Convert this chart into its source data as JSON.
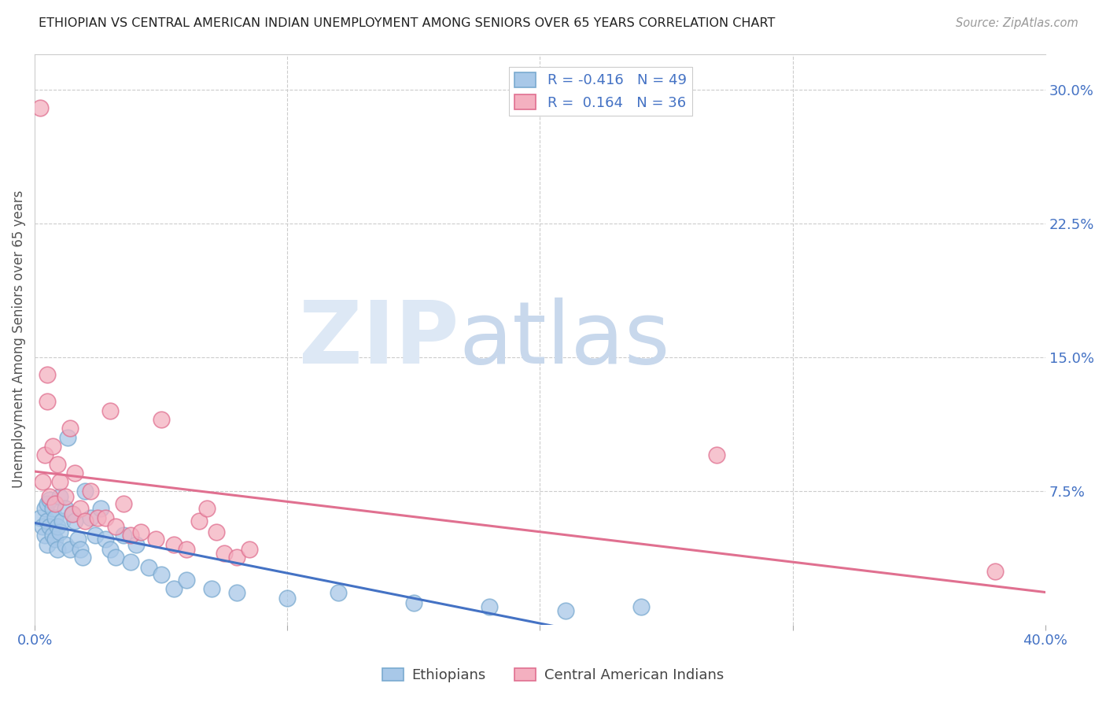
{
  "title": "ETHIOPIAN VS CENTRAL AMERICAN INDIAN UNEMPLOYMENT AMONG SENIORS OVER 65 YEARS CORRELATION CHART",
  "source": "Source: ZipAtlas.com",
  "ylabel": "Unemployment Among Seniors over 65 years",
  "xlim": [
    0.0,
    0.4
  ],
  "ylim": [
    0.0,
    0.32
  ],
  "yticks_right": [
    0.075,
    0.15,
    0.225,
    0.3
  ],
  "yticklabels_right": [
    "7.5%",
    "15.0%",
    "22.5%",
    "30.0%"
  ],
  "blue_color": "#a8c8e8",
  "pink_color": "#f4b0c0",
  "blue_edge": "#7aaad0",
  "pink_edge": "#e07090",
  "trend_blue": "#4472c4",
  "trend_pink": "#e07090",
  "R_blue": -0.416,
  "N_blue": 49,
  "R_pink": 0.164,
  "N_pink": 36,
  "legend_label_blue": "Ethiopians",
  "legend_label_pink": "Central American Indians",
  "watermark_zip": "ZIP",
  "watermark_atlas": "atlas",
  "title_color": "#222222",
  "axis_color": "#4472c4",
  "ethiopian_x": [
    0.002,
    0.003,
    0.004,
    0.004,
    0.005,
    0.005,
    0.005,
    0.006,
    0.006,
    0.007,
    0.007,
    0.008,
    0.008,
    0.009,
    0.009,
    0.01,
    0.01,
    0.011,
    0.012,
    0.012,
    0.013,
    0.014,
    0.015,
    0.016,
    0.017,
    0.018,
    0.019,
    0.02,
    0.022,
    0.024,
    0.026,
    0.028,
    0.03,
    0.032,
    0.035,
    0.038,
    0.04,
    0.045,
    0.05,
    0.055,
    0.06,
    0.07,
    0.08,
    0.1,
    0.12,
    0.15,
    0.18,
    0.21,
    0.24
  ],
  "ethiopian_y": [
    0.06,
    0.055,
    0.065,
    0.05,
    0.068,
    0.058,
    0.045,
    0.07,
    0.055,
    0.065,
    0.05,
    0.06,
    0.048,
    0.055,
    0.042,
    0.072,
    0.052,
    0.058,
    0.065,
    0.045,
    0.105,
    0.042,
    0.062,
    0.058,
    0.048,
    0.042,
    0.038,
    0.075,
    0.06,
    0.05,
    0.065,
    0.048,
    0.042,
    0.038,
    0.05,
    0.035,
    0.045,
    0.032,
    0.028,
    0.02,
    0.025,
    0.02,
    0.018,
    0.015,
    0.018,
    0.012,
    0.01,
    0.008,
    0.01
  ],
  "central_american_x": [
    0.002,
    0.003,
    0.004,
    0.005,
    0.005,
    0.006,
    0.007,
    0.008,
    0.009,
    0.01,
    0.012,
    0.014,
    0.015,
    0.016,
    0.018,
    0.02,
    0.022,
    0.025,
    0.028,
    0.032,
    0.035,
    0.038,
    0.042,
    0.048,
    0.055,
    0.06,
    0.065,
    0.03,
    0.075,
    0.08,
    0.27,
    0.38,
    0.05,
    0.068,
    0.072,
    0.085
  ],
  "central_american_y": [
    0.29,
    0.08,
    0.095,
    0.14,
    0.125,
    0.072,
    0.1,
    0.068,
    0.09,
    0.08,
    0.072,
    0.11,
    0.062,
    0.085,
    0.065,
    0.058,
    0.075,
    0.06,
    0.06,
    0.055,
    0.068,
    0.05,
    0.052,
    0.048,
    0.045,
    0.042,
    0.058,
    0.12,
    0.04,
    0.038,
    0.095,
    0.03,
    0.115,
    0.065,
    0.052,
    0.042
  ]
}
